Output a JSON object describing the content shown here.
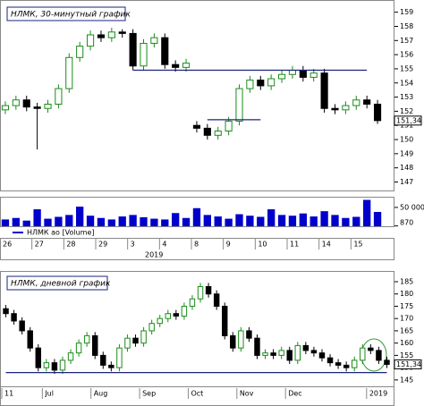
{
  "chart_data": [
    {
      "type": "candlestick",
      "title": "НЛМК, 30-минутный график",
      "categories": [
        "26",
        null,
        null,
        "27",
        null,
        null,
        "28",
        null,
        null,
        "29",
        null,
        null,
        "3",
        null,
        null,
        "4",
        null,
        null,
        "8",
        null,
        null,
        "9",
        null,
        null,
        "10",
        null,
        null,
        "11",
        null,
        null,
        "14",
        null,
        null,
        "15",
        null,
        null
      ],
      "year": "2019",
      "open": [
        152.1,
        152.4,
        152.8,
        152.3,
        152.2,
        152.5,
        153.6,
        155.8,
        156.6,
        157.4,
        157.2,
        157.6,
        157.5,
        155.2,
        156.8,
        157.2,
        155.3,
        155.1,
        151.0,
        150.8,
        150.3,
        150.6,
        151.3,
        153.6,
        154.2,
        153.8,
        154.3,
        154.6,
        154.9,
        154.4,
        154.7,
        152.2,
        152.1,
        152.4,
        152.8,
        152.5
      ],
      "high": [
        152.7,
        153.1,
        153.1,
        152.6,
        152.8,
        153.9,
        156.1,
        156.9,
        157.7,
        157.7,
        157.9,
        157.8,
        157.8,
        157.1,
        157.5,
        157.5,
        155.6,
        155.7,
        151.3,
        151.1,
        150.9,
        151.6,
        153.9,
        154.5,
        154.5,
        154.6,
        154.9,
        155.2,
        155.2,
        155.0,
        155.0,
        152.5,
        152.7,
        153.1,
        153.1,
        152.8
      ],
      "low": [
        151.8,
        152.1,
        152.0,
        149.3,
        151.9,
        152.2,
        153.3,
        155.5,
        156.3,
        156.9,
        156.9,
        157.2,
        154.9,
        154.9,
        156.5,
        155.0,
        154.8,
        154.8,
        150.5,
        150.0,
        150.0,
        150.3,
        151.0,
        153.3,
        153.5,
        153.5,
        154.0,
        154.3,
        154.1,
        154.1,
        151.9,
        151.8,
        151.8,
        152.1,
        152.2,
        151.1
      ],
      "close": [
        152.4,
        152.8,
        152.3,
        152.2,
        152.5,
        153.6,
        155.8,
        156.6,
        157.4,
        157.2,
        157.6,
        157.5,
        155.2,
        156.8,
        157.2,
        155.3,
        155.1,
        155.4,
        150.8,
        150.3,
        150.6,
        151.3,
        153.6,
        154.2,
        153.8,
        154.3,
        154.6,
        154.9,
        154.4,
        154.7,
        152.2,
        152.1,
        152.4,
        152.8,
        152.5,
        151.34
      ],
      "up_color": "#1a8c1a",
      "down_color": "#000000",
      "ylim": [
        146.4,
        159.8
      ],
      "yticks": [
        147,
        148,
        149,
        150,
        151,
        152,
        153,
        154,
        155,
        156,
        157,
        158,
        159
      ],
      "last_value": 151.34,
      "last_label": "151,34",
      "levels": [
        {
          "value": 154.9,
          "start": 12,
          "end": 34,
          "color": "#1a237e"
        },
        {
          "value": 151.4,
          "start": 19,
          "end": 24,
          "color": "#1a237e"
        }
      ],
      "volume": {
        "name": "НЛМК ао [Volume]",
        "color": "#0000cc",
        "values": [
          18000,
          22000,
          15000,
          45000,
          20000,
          25000,
          30000,
          52000,
          28000,
          22000,
          18000,
          26000,
          30000,
          24000,
          20000,
          18000,
          35000,
          22000,
          48000,
          30000,
          26000,
          20000,
          32000,
          28000,
          25000,
          45000,
          30000,
          28000,
          34000,
          26000,
          40000,
          30000,
          22000,
          25000,
          70000,
          38000
        ],
        "ylim": [
          0,
          76000
        ],
        "yticks": [
          {
            "value": 50000,
            "label": "50 000"
          },
          870
        ]
      }
    },
    {
      "type": "candlestick",
      "title": "НЛМК, дневной график",
      "categories": [
        "11",
        null,
        null,
        null,
        null,
        "Jul",
        null,
        null,
        null,
        null,
        null,
        "Aug",
        null,
        null,
        null,
        null,
        null,
        "Sep",
        null,
        null,
        null,
        null,
        null,
        "Oct",
        null,
        null,
        null,
        null,
        null,
        "Nov",
        null,
        null,
        null,
        null,
        null,
        "Dec",
        null,
        null,
        null,
        null,
        null,
        null,
        null,
        null,
        null,
        "2019",
        null,
        null
      ],
      "open": [
        174,
        172,
        169,
        165,
        158,
        150,
        152,
        149,
        153,
        156,
        160,
        163,
        155,
        151,
        150,
        158,
        162,
        160,
        165,
        168,
        170,
        172,
        171,
        175,
        178,
        183,
        180,
        175,
        163,
        158,
        165,
        162,
        155,
        156,
        155,
        157,
        153,
        159,
        157,
        156,
        154,
        152,
        151,
        150,
        153,
        158,
        157,
        153
      ],
      "high": [
        175.5,
        173.5,
        170.5,
        166.5,
        159.5,
        153.5,
        153.5,
        154.5,
        157.5,
        161.5,
        164.5,
        164.5,
        156.5,
        152.5,
        159.5,
        163.5,
        163.5,
        166.5,
        169.5,
        171.5,
        173.5,
        173.5,
        176.5,
        179.5,
        184.5,
        184.5,
        181.5,
        176.5,
        164.5,
        166.5,
        166.5,
        163.5,
        157.5,
        157.5,
        158.5,
        158.5,
        160.5,
        160.5,
        158.5,
        157.5,
        155.5,
        153.5,
        152.5,
        154.5,
        159.5,
        159.5,
        158.5,
        154.5
      ],
      "low": [
        170.5,
        167.5,
        163.5,
        156.5,
        148.5,
        148.5,
        147.5,
        147.5,
        151.5,
        154.5,
        158.5,
        153.5,
        149.5,
        148.5,
        148.5,
        156.5,
        158.5,
        158.5,
        163.5,
        166.5,
        168.5,
        169.5,
        169.5,
        173.5,
        176.5,
        178.5,
        173.5,
        161.5,
        156.5,
        156.5,
        160.5,
        153.5,
        153.5,
        153.5,
        153.5,
        151.5,
        151.5,
        155.5,
        154.5,
        152.5,
        150.5,
        149.5,
        148.5,
        148.5,
        151.5,
        155.5,
        151.5,
        149.84
      ],
      "close": [
        172,
        169,
        165,
        158,
        150,
        152,
        149,
        153,
        156,
        160,
        163,
        155,
        151,
        150,
        158,
        162,
        160,
        165,
        168,
        170,
        172,
        171,
        175,
        178,
        183,
        180,
        175,
        163,
        158,
        165,
        162,
        155,
        156,
        155,
        157,
        153,
        159,
        157,
        156,
        154,
        152,
        151,
        150,
        153,
        158,
        157,
        153,
        151.34
      ],
      "up_color": "#1a8c1a",
      "down_color": "#000000",
      "ylim": [
        142.4,
        189
      ],
      "yticks": [
        145,
        150,
        155,
        160,
        165,
        170,
        175,
        180,
        185
      ],
      "last_value": 151.34,
      "last_label": "151,34",
      "levels": [
        {
          "value": 148,
          "start": 0,
          "end": 47,
          "color": "#1a237e"
        }
      ]
    }
  ]
}
